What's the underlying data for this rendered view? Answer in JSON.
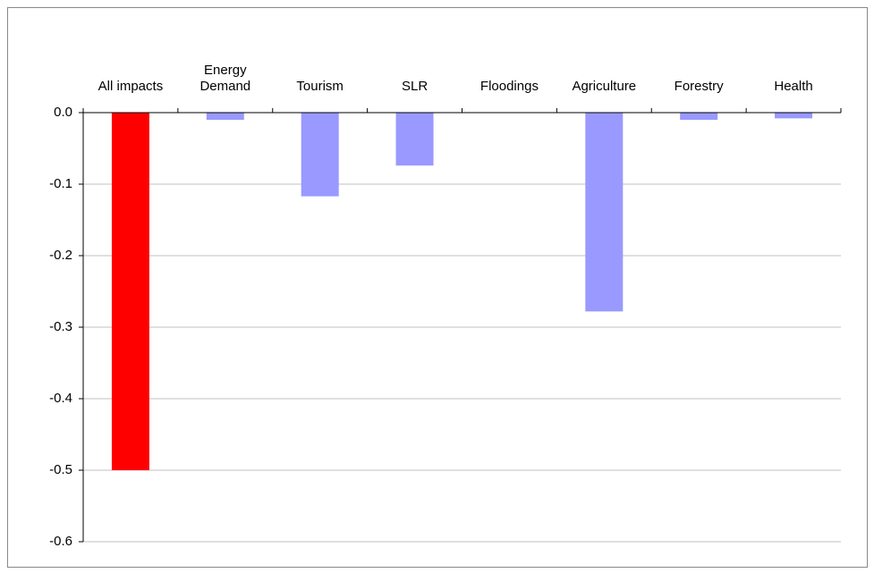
{
  "chart_data": {
    "type": "bar",
    "categories": [
      "All impacts",
      "Energy Demand",
      "Tourism",
      "SLR",
      "Floodings",
      "Agriculture",
      "Forestry",
      "Health"
    ],
    "values": [
      -0.5,
      -0.01,
      -0.117,
      -0.074,
      0,
      -0.278,
      -0.01,
      -0.008
    ],
    "colors": [
      "#ff0000",
      "#9999ff",
      "#9999ff",
      "#9999ff",
      "#9999ff",
      "#9999ff",
      "#9999ff",
      "#9999ff"
    ],
    "ylim": [
      -0.6,
      0
    ],
    "yticks": [
      {
        "value": 0,
        "label": "0.0"
      },
      -0.1,
      -0.2,
      -0.3,
      -0.4,
      -0.5,
      -0.6
    ],
    "grid": true
  }
}
